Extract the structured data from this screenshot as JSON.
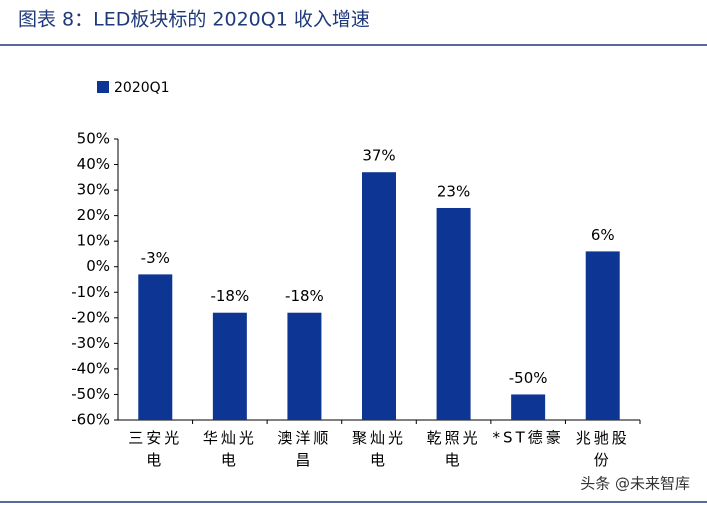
{
  "chart_data": {
    "type": "bar",
    "title": "图表 8：LED板块标的 2020Q1 收入增速",
    "categories": [
      "三安光电",
      "华灿光电",
      "澳洋顺昌",
      "聚灿光电",
      "乾照光电",
      "*ST德豪",
      "兆驰股份"
    ],
    "series": [
      {
        "name": "2020Q1",
        "color": "#0d3594",
        "values": [
          -3,
          -18,
          -18,
          37,
          23,
          -50,
          6
        ],
        "value_labels": [
          "-3%",
          "-18%",
          "-18%",
          "37%",
          "23%",
          "-50%",
          "6%"
        ]
      }
    ],
    "ylim": [
      -60,
      50
    ],
    "yticks": [
      {
        "value": -60,
        "label": "-60%"
      },
      {
        "value": -50,
        "label": "-50%"
      },
      {
        "value": -40,
        "label": "-40%"
      },
      {
        "value": -30,
        "label": "-30%"
      },
      {
        "value": -20,
        "label": "-20%"
      },
      {
        "value": -10,
        "label": "-10%"
      },
      {
        "value": 0,
        "label": "0%"
      },
      {
        "value": 10,
        "label": "10%"
      },
      {
        "value": 20,
        "label": "20%"
      },
      {
        "value": 30,
        "label": "30%"
      },
      {
        "value": 40,
        "label": "40%"
      },
      {
        "value": 50,
        "label": "50%"
      }
    ],
    "grid": false,
    "legend": "top-left",
    "watermark": "头条 @未来智库"
  }
}
